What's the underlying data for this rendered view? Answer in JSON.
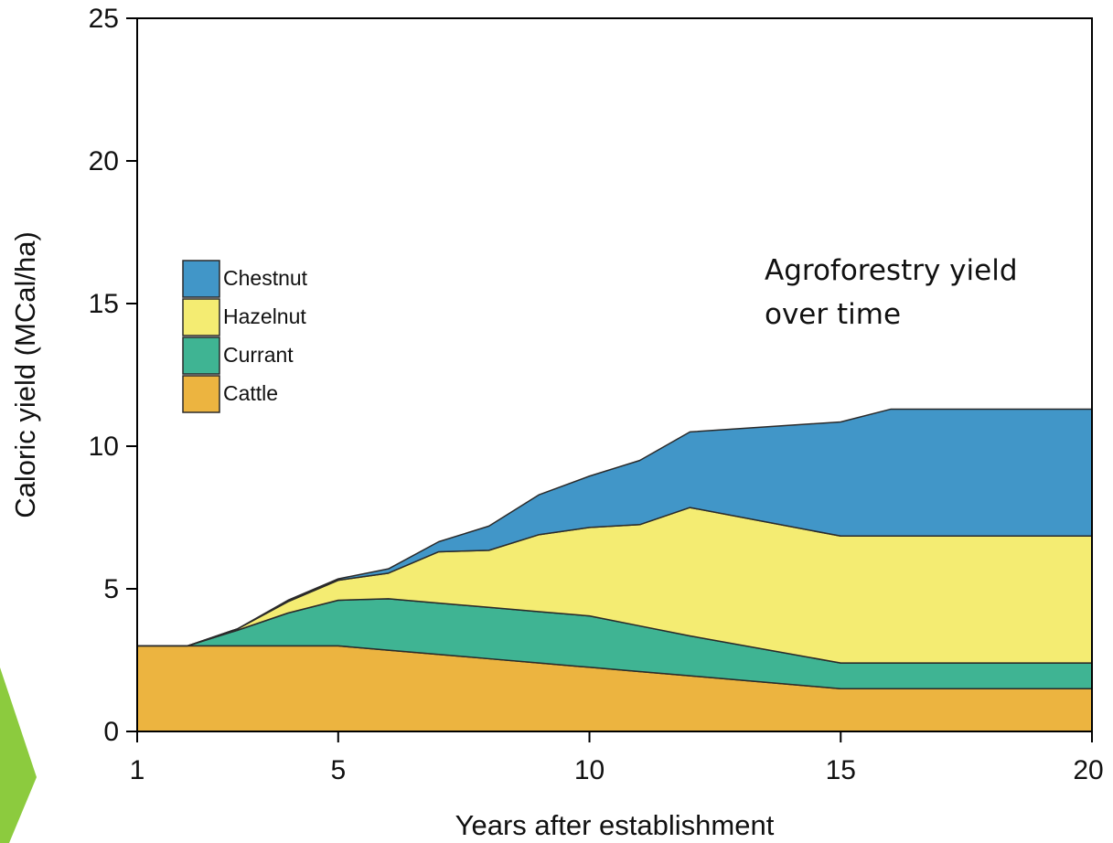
{
  "chart_data": {
    "type": "area",
    "stacked": true,
    "xlabel": "Years after establishment",
    "ylabel": "Caloric yield (MCal/ha)",
    "xlim": [
      1,
      20
    ],
    "ylim": [
      0,
      25
    ],
    "xticks": [
      1,
      5,
      10,
      15,
      20
    ],
    "yticks": [
      0,
      5,
      10,
      15,
      20,
      25
    ],
    "grid": false,
    "legend_position": "left",
    "annotation": [
      "Agroforestry yield",
      "over time"
    ],
    "x": [
      1,
      2,
      3,
      4,
      5,
      6,
      7,
      8,
      9,
      10,
      11,
      12,
      15,
      16,
      20
    ],
    "series": [
      {
        "name": "Cattle",
        "color": "#ECB440",
        "values": [
          3.0,
          3.0,
          3.0,
          3.0,
          3.0,
          2.85,
          2.7,
          2.55,
          2.4,
          2.25,
          2.1,
          1.95,
          1.5,
          1.5,
          1.5
        ]
      },
      {
        "name": "Currant",
        "color": "#3FB493",
        "values": [
          0.0,
          0.0,
          0.55,
          1.15,
          1.6,
          1.8,
          1.8,
          1.8,
          1.8,
          1.8,
          1.6,
          1.4,
          0.9,
          0.9,
          0.9
        ]
      },
      {
        "name": "Hazelnut",
        "color": "#F4EC72",
        "values": [
          0.0,
          0.0,
          0.05,
          0.4,
          0.7,
          0.9,
          1.8,
          2.0,
          2.7,
          3.1,
          3.55,
          4.5,
          4.45,
          4.45,
          4.45
        ]
      },
      {
        "name": "Chestnut",
        "color": "#4196C8",
        "values": [
          0.0,
          0.0,
          0.0,
          0.05,
          0.05,
          0.15,
          0.35,
          0.85,
          1.4,
          1.8,
          2.25,
          2.65,
          4.0,
          4.45,
          4.45
        ]
      }
    ]
  }
}
